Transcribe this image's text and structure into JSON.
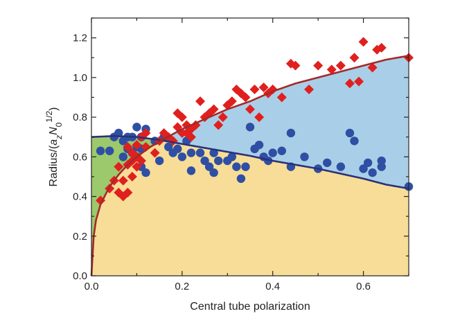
{
  "chart_data": {
    "type": "scatter",
    "title": "",
    "xlabel": "Central tube polarization",
    "ylabel": "Radius/(a_zN_0^(1/2))",
    "ylabel_parts": {
      "base": "Radius/(",
      "a": "a",
      "a_sub": "z",
      "N": "N",
      "N_sub": "0",
      "exp": "1/2",
      "close": ")"
    },
    "xlim": [
      0.0,
      0.7
    ],
    "ylim": [
      0.0,
      1.3
    ],
    "xticks": [
      0.0,
      0.2,
      0.4,
      0.6
    ],
    "yticks": [
      0.0,
      0.2,
      0.4,
      0.6,
      0.8,
      1.0,
      1.2
    ],
    "xtick_labels": [
      "0.0",
      "0.2",
      "0.4",
      "0.6"
    ],
    "ytick_labels": [
      "0.0",
      "0.2",
      "0.4",
      "0.6",
      "0.8",
      "1.0",
      "1.2"
    ],
    "colors": {
      "red": "#e0201e",
      "blue": "#2e4fa3",
      "red_curve": "#a32a2a",
      "blue_curve": "#2b3178",
      "green_region": "#9cc96b",
      "light_blue_region": "#a9cfe8",
      "yellow_region": "#f7dd98"
    },
    "curves": [
      {
        "name": "red-curve",
        "x": [
          0.0,
          0.005,
          0.01,
          0.02,
          0.04,
          0.06,
          0.08,
          0.1,
          0.13,
          0.16,
          0.2,
          0.25,
          0.3,
          0.35,
          0.4,
          0.45,
          0.5,
          0.55,
          0.6,
          0.65,
          0.7
        ],
        "y": [
          0.0,
          0.2,
          0.28,
          0.36,
          0.45,
          0.51,
          0.56,
          0.6,
          0.65,
          0.69,
          0.74,
          0.79,
          0.84,
          0.88,
          0.93,
          0.97,
          1.0,
          1.03,
          1.06,
          1.09,
          1.11
        ]
      },
      {
        "name": "blue-curve",
        "x": [
          0.0,
          0.05,
          0.1,
          0.15,
          0.2,
          0.25,
          0.3,
          0.35,
          0.4,
          0.45,
          0.5,
          0.55,
          0.6,
          0.65,
          0.7
        ],
        "y": [
          0.7,
          0.705,
          0.7,
          0.685,
          0.665,
          0.645,
          0.625,
          0.605,
          0.58,
          0.56,
          0.54,
          0.515,
          0.49,
          0.46,
          0.44
        ]
      }
    ],
    "series": [
      {
        "name": "red-diamonds",
        "x": [
          0.02,
          0.04,
          0.05,
          0.06,
          0.06,
          0.07,
          0.07,
          0.08,
          0.08,
          0.08,
          0.09,
          0.09,
          0.09,
          0.1,
          0.1,
          0.1,
          0.11,
          0.11,
          0.12,
          0.12,
          0.14,
          0.15,
          0.16,
          0.17,
          0.18,
          0.19,
          0.19,
          0.2,
          0.2,
          0.21,
          0.21,
          0.22,
          0.22,
          0.23,
          0.24,
          0.25,
          0.26,
          0.27,
          0.28,
          0.29,
          0.3,
          0.31,
          0.32,
          0.33,
          0.34,
          0.35,
          0.36,
          0.37,
          0.38,
          0.39,
          0.4,
          0.42,
          0.44,
          0.45,
          0.48,
          0.5,
          0.53,
          0.55,
          0.57,
          0.58,
          0.59,
          0.6,
          0.62,
          0.63,
          0.64,
          0.7
        ],
        "y": [
          0.38,
          0.44,
          0.48,
          0.42,
          0.55,
          0.4,
          0.48,
          0.42,
          0.56,
          0.65,
          0.5,
          0.58,
          0.62,
          0.55,
          0.6,
          0.66,
          0.58,
          0.7,
          0.65,
          0.72,
          0.62,
          0.68,
          0.72,
          0.7,
          0.68,
          0.75,
          0.82,
          0.72,
          0.8,
          0.76,
          0.72,
          0.74,
          0.7,
          0.76,
          0.88,
          0.8,
          0.82,
          0.84,
          0.76,
          0.8,
          0.86,
          0.88,
          0.94,
          0.92,
          0.9,
          0.84,
          0.94,
          0.8,
          0.95,
          0.92,
          0.94,
          0.9,
          1.07,
          1.06,
          0.94,
          1.06,
          1.04,
          1.06,
          0.97,
          1.1,
          0.98,
          1.18,
          1.05,
          1.14,
          1.15,
          1.1
        ]
      },
      {
        "name": "blue-circles",
        "x": [
          0.02,
          0.04,
          0.05,
          0.06,
          0.07,
          0.07,
          0.08,
          0.08,
          0.09,
          0.09,
          0.1,
          0.1,
          0.1,
          0.11,
          0.11,
          0.11,
          0.12,
          0.12,
          0.14,
          0.15,
          0.16,
          0.17,
          0.18,
          0.19,
          0.2,
          0.21,
          0.22,
          0.22,
          0.24,
          0.25,
          0.26,
          0.27,
          0.27,
          0.28,
          0.3,
          0.31,
          0.32,
          0.33,
          0.34,
          0.35,
          0.36,
          0.37,
          0.38,
          0.39,
          0.4,
          0.42,
          0.44,
          0.44,
          0.47,
          0.5,
          0.52,
          0.55,
          0.57,
          0.58,
          0.6,
          0.61,
          0.62,
          0.64,
          0.64,
          0.7
        ],
        "y": [
          0.63,
          0.63,
          0.7,
          0.72,
          0.68,
          0.6,
          0.7,
          0.64,
          0.7,
          0.62,
          0.75,
          0.65,
          0.6,
          0.7,
          0.64,
          0.55,
          0.74,
          0.52,
          0.68,
          0.58,
          0.7,
          0.65,
          0.62,
          0.64,
          0.6,
          0.68,
          0.62,
          0.53,
          0.62,
          0.58,
          0.55,
          0.62,
          0.52,
          0.58,
          0.58,
          0.6,
          0.55,
          0.49,
          0.55,
          0.75,
          0.64,
          0.66,
          0.6,
          0.58,
          0.62,
          0.63,
          0.72,
          0.55,
          0.6,
          0.54,
          0.57,
          0.55,
          0.72,
          0.68,
          0.54,
          0.57,
          0.52,
          0.58,
          0.55,
          0.45
        ]
      }
    ]
  }
}
